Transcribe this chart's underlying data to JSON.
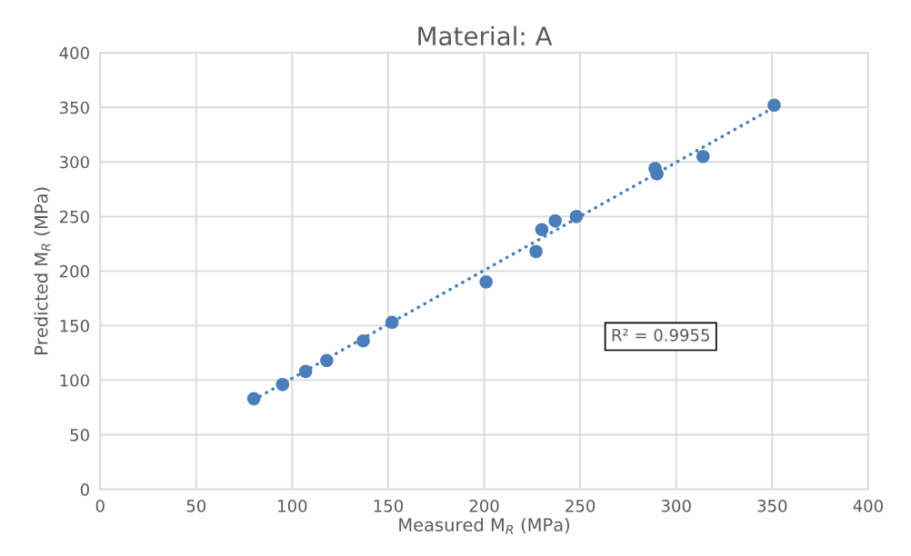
{
  "chart_data": {
    "type": "scatter",
    "title": "Material: A",
    "xlabel": "Measured M$_{R}$ (MPa)",
    "ylabel": "Predicted M$_{R}$ (MPa)",
    "xlim": [
      0,
      400
    ],
    "ylim": [
      0,
      400
    ],
    "xticks": [
      0,
      50,
      100,
      150,
      200,
      250,
      300,
      350,
      400
    ],
    "yticks": [
      0,
      50,
      100,
      150,
      200,
      250,
      300,
      350,
      400
    ],
    "grid": true,
    "annotations": [
      "R² = 0.9955"
    ],
    "series": [
      {
        "color": "#4a7ebb",
        "marker": "circle",
        "x": [
          80,
          95,
          107,
          118,
          137,
          152,
          201,
          227,
          230,
          237,
          248,
          289,
          290,
          314,
          351
        ],
        "values": [
          83,
          96,
          108,
          118,
          136,
          153,
          190,
          218,
          238,
          246,
          250,
          294,
          289,
          305,
          352
        ]
      },
      {
        "type": "line",
        "color": "#4a7ebb",
        "marker": "none",
        "line_style": "dotted",
        "x": [
          80,
          351
        ],
        "values": [
          82,
          350
        ]
      }
    ]
  }
}
